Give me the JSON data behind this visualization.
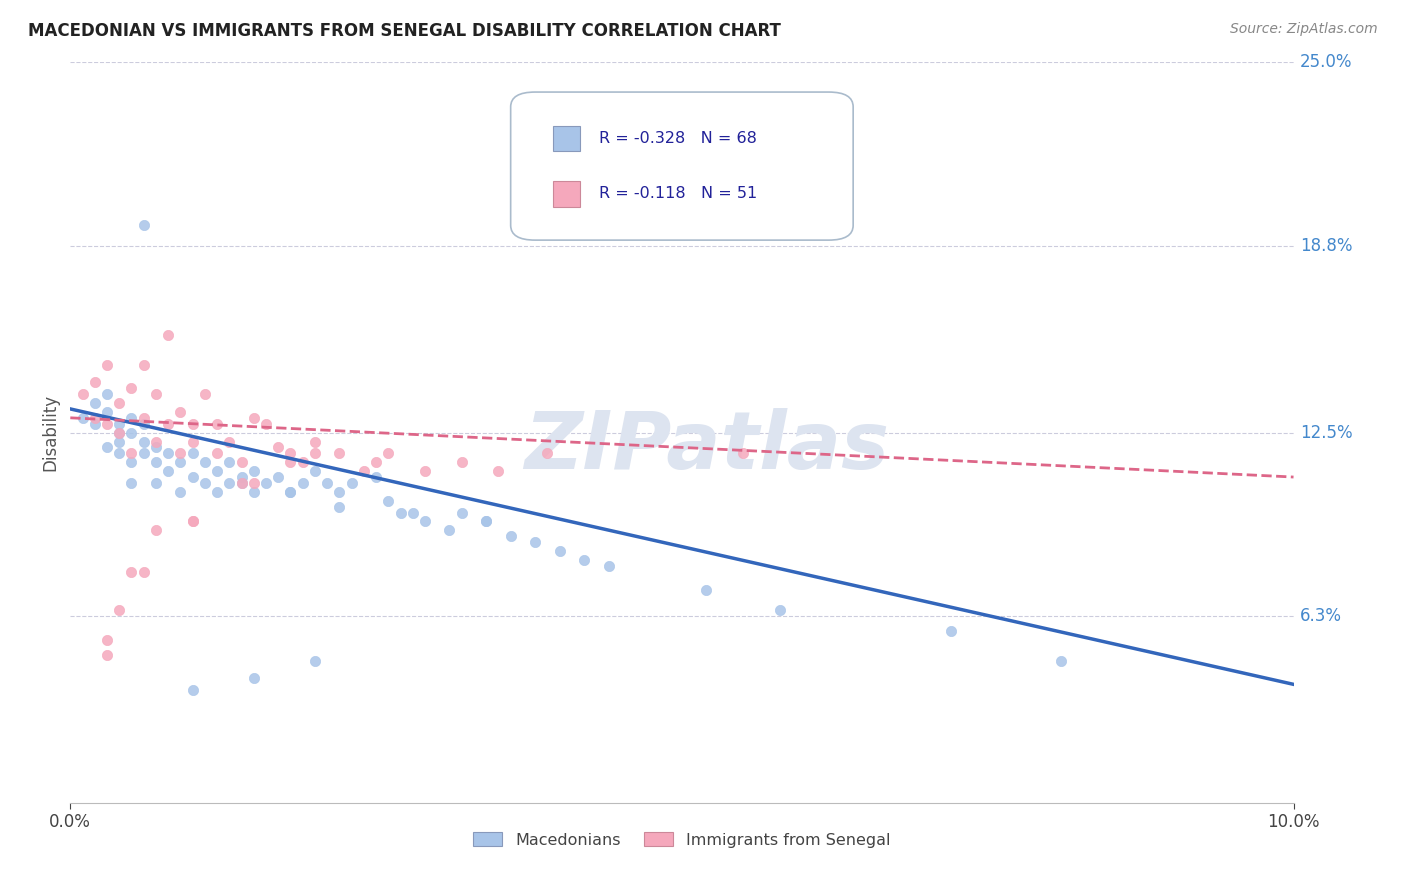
{
  "title": "MACEDONIAN VS IMMIGRANTS FROM SENEGAL DISABILITY CORRELATION CHART",
  "source": "Source: ZipAtlas.com",
  "ylabel": "Disability",
  "xlim": [
    0.0,
    0.1
  ],
  "ylim": [
    0.0,
    0.25
  ],
  "ytick_vals": [
    0.063,
    0.125,
    0.188,
    0.25
  ],
  "ytick_labels": [
    "6.3%",
    "12.5%",
    "18.8%",
    "25.0%"
  ],
  "xtick_vals": [
    0.0,
    0.1
  ],
  "xtick_labels": [
    "0.0%",
    "10.0%"
  ],
  "legend_r1": "-0.328",
  "legend_n1": "68",
  "legend_r2": "-0.118",
  "legend_n2": "51",
  "color_mac": "#a8c4e8",
  "color_sen": "#f5a8bc",
  "line_color_mac": "#3366bb",
  "line_color_sen": "#dd6688",
  "watermark_color": "#dde4f0",
  "mac_x": [
    0.001,
    0.002,
    0.002,
    0.003,
    0.003,
    0.003,
    0.004,
    0.004,
    0.004,
    0.004,
    0.005,
    0.005,
    0.005,
    0.005,
    0.006,
    0.006,
    0.006,
    0.007,
    0.007,
    0.007,
    0.008,
    0.008,
    0.009,
    0.009,
    0.01,
    0.01,
    0.011,
    0.011,
    0.012,
    0.012,
    0.013,
    0.013,
    0.014,
    0.015,
    0.015,
    0.016,
    0.017,
    0.018,
    0.019,
    0.02,
    0.021,
    0.022,
    0.023,
    0.025,
    0.026,
    0.027,
    0.029,
    0.031,
    0.032,
    0.034,
    0.036,
    0.038,
    0.04,
    0.042,
    0.044,
    0.034,
    0.028,
    0.022,
    0.018,
    0.014,
    0.072,
    0.081,
    0.052,
    0.058,
    0.02,
    0.015,
    0.01,
    0.006
  ],
  "mac_y": [
    0.13,
    0.128,
    0.135,
    0.12,
    0.132,
    0.138,
    0.125,
    0.118,
    0.128,
    0.122,
    0.115,
    0.13,
    0.125,
    0.108,
    0.118,
    0.122,
    0.128,
    0.115,
    0.12,
    0.108,
    0.112,
    0.118,
    0.115,
    0.105,
    0.11,
    0.118,
    0.108,
    0.115,
    0.105,
    0.112,
    0.108,
    0.115,
    0.11,
    0.105,
    0.112,
    0.108,
    0.11,
    0.105,
    0.108,
    0.112,
    0.108,
    0.105,
    0.108,
    0.11,
    0.102,
    0.098,
    0.095,
    0.092,
    0.098,
    0.095,
    0.09,
    0.088,
    0.085,
    0.082,
    0.08,
    0.095,
    0.098,
    0.1,
    0.105,
    0.108,
    0.058,
    0.048,
    0.072,
    0.065,
    0.048,
    0.042,
    0.038,
    0.195
  ],
  "sen_x": [
    0.001,
    0.002,
    0.002,
    0.003,
    0.003,
    0.004,
    0.004,
    0.005,
    0.005,
    0.006,
    0.006,
    0.007,
    0.007,
    0.008,
    0.008,
    0.009,
    0.009,
    0.01,
    0.01,
    0.011,
    0.012,
    0.012,
    0.013,
    0.014,
    0.015,
    0.016,
    0.017,
    0.018,
    0.019,
    0.02,
    0.022,
    0.024,
    0.026,
    0.029,
    0.032,
    0.035,
    0.039,
    0.025,
    0.02,
    0.015,
    0.01,
    0.007,
    0.005,
    0.003,
    0.018,
    0.014,
    0.01,
    0.006,
    0.004,
    0.003,
    0.055
  ],
  "sen_y": [
    0.138,
    0.13,
    0.142,
    0.128,
    0.148,
    0.135,
    0.125,
    0.14,
    0.118,
    0.13,
    0.148,
    0.138,
    0.122,
    0.128,
    0.158,
    0.132,
    0.118,
    0.128,
    0.122,
    0.138,
    0.128,
    0.118,
    0.122,
    0.115,
    0.13,
    0.128,
    0.12,
    0.118,
    0.115,
    0.122,
    0.118,
    0.112,
    0.118,
    0.112,
    0.115,
    0.112,
    0.118,
    0.115,
    0.118,
    0.108,
    0.095,
    0.092,
    0.078,
    0.055,
    0.115,
    0.108,
    0.095,
    0.078,
    0.065,
    0.05,
    0.118
  ]
}
